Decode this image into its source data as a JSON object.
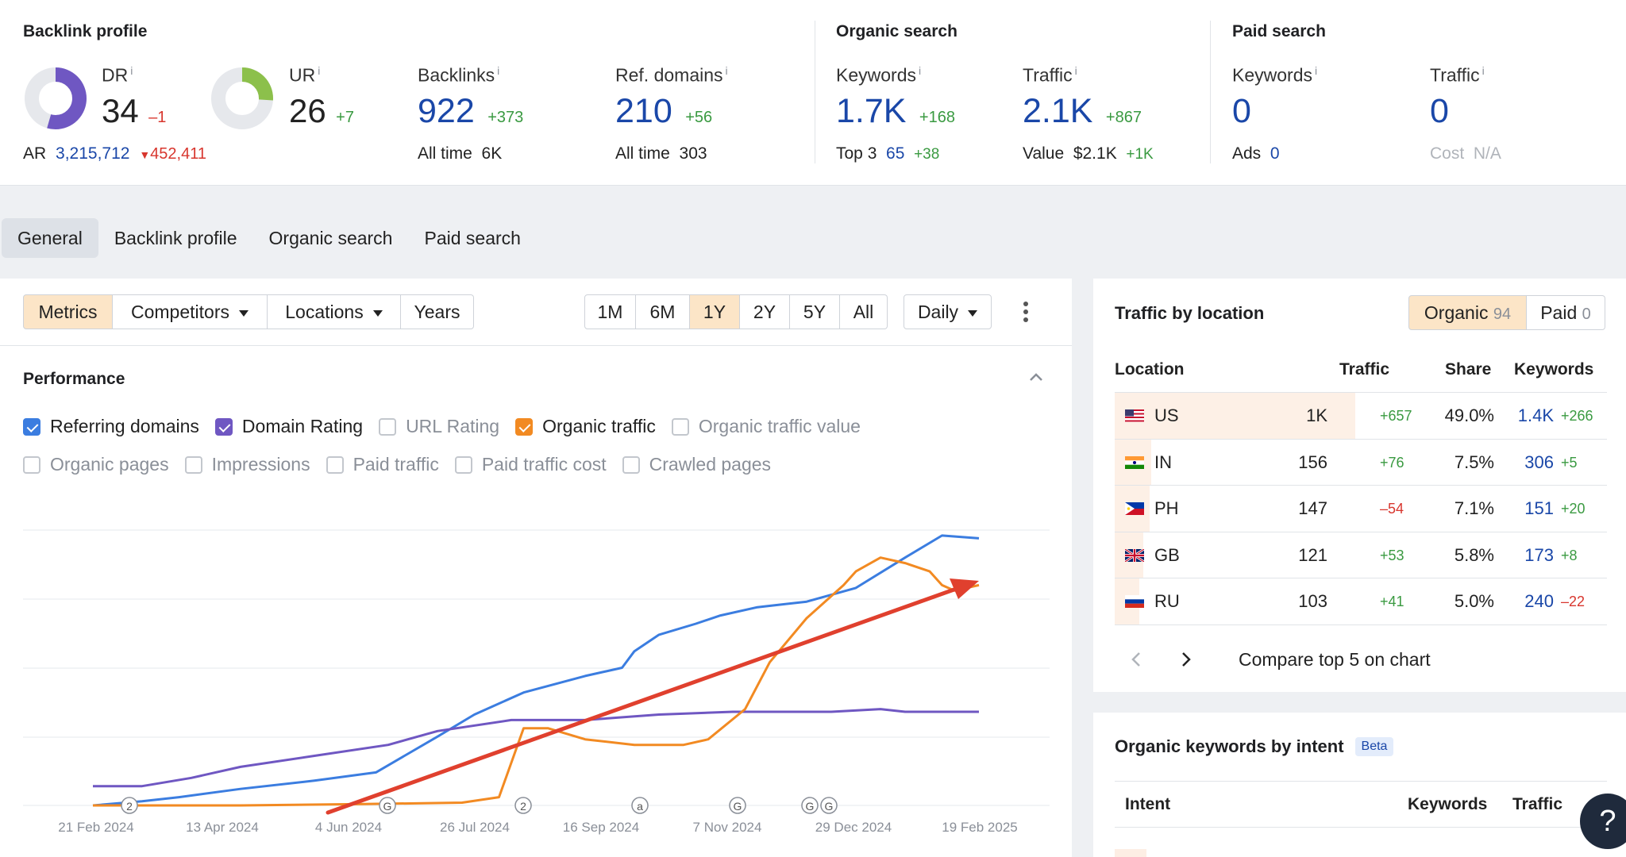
{
  "backlink_profile": {
    "title": "Backlink profile",
    "dr": {
      "label": "DR",
      "value": "34",
      "delta": "–1",
      "ratio": 0.34
    },
    "ur": {
      "label": "UR",
      "value": "26",
      "delta": "+7",
      "ratio": 0.26
    },
    "ar": {
      "label": "AR",
      "value": "3,215,712",
      "delta": "452,411"
    },
    "backlinks": {
      "label": "Backlinks",
      "value": "922",
      "delta": "+373",
      "sub_label": "All time",
      "sub_value": "6K"
    },
    "ref_domains": {
      "label": "Ref. domains",
      "value": "210",
      "delta": "+56",
      "sub_label": "All time",
      "sub_value": "303"
    }
  },
  "organic_search": {
    "title": "Organic search",
    "keywords": {
      "label": "Keywords",
      "value": "1.7K",
      "delta": "+168",
      "sub_label": "Top 3",
      "sub_value": "65",
      "sub_delta": "+38"
    },
    "traffic": {
      "label": "Traffic",
      "value": "2.1K",
      "delta": "+867",
      "sub_label": "Value",
      "sub_value": "$2.1K",
      "sub_delta": "+1K"
    }
  },
  "paid_search": {
    "title": "Paid search",
    "keywords": {
      "label": "Keywords",
      "value": "0",
      "sub_label": "Ads",
      "sub_value": "0"
    },
    "traffic": {
      "label": "Traffic",
      "value": "0",
      "sub_label": "Cost",
      "sub_value": "N/A"
    }
  },
  "tabs": [
    "General",
    "Backlink profile",
    "Organic search",
    "Paid search"
  ],
  "toolbar": {
    "views": [
      "Metrics",
      "Competitors",
      "Locations",
      "Years"
    ],
    "ranges": [
      "1M",
      "6M",
      "1Y",
      "2Y",
      "5Y",
      "All"
    ],
    "active_range": "1Y",
    "interval": "Daily"
  },
  "performance": {
    "title": "Performance",
    "checkboxes_row1": [
      {
        "label": "Referring domains",
        "checked": true
      },
      {
        "label": "Domain Rating",
        "checked": true
      },
      {
        "label": "URL Rating",
        "checked": false
      },
      {
        "label": "Organic traffic",
        "checked": true
      },
      {
        "label": "Organic traffic value",
        "checked": false
      }
    ],
    "checkboxes_row2": [
      {
        "label": "Organic pages",
        "checked": false
      },
      {
        "label": "Impressions",
        "checked": false
      },
      {
        "label": "Paid traffic",
        "checked": false
      },
      {
        "label": "Paid traffic cost",
        "checked": false
      },
      {
        "label": "Crawled pages",
        "checked": false
      }
    ]
  },
  "chart_data": {
    "type": "line",
    "x_tick_labels": [
      "21 Feb 2024",
      "13 Apr 2024",
      "4 Jun 2024",
      "26 Jul 2024",
      "16 Sep 2024",
      "7 Nov 2024",
      "29 Dec 2024",
      "19 Feb 2025"
    ],
    "y_scale": "relative (no axis labels shown)",
    "grid": true,
    "series": [
      {
        "name": "Referring domains",
        "color": "#3b7de0",
        "x": [
          0,
          20,
          35,
          60,
          90,
          115,
          140,
          155,
          175,
          200,
          215,
          220,
          230,
          245,
          255,
          270,
          290,
          310,
          330,
          345,
          360
        ],
        "y": [
          0,
          1.5,
          3,
          6,
          9,
          12,
          25,
          33,
          41,
          47,
          50,
          56,
          62,
          66,
          69,
          72,
          74,
          79,
          90,
          98,
          97
        ]
      },
      {
        "name": "Domain Rating",
        "color": "#6f57c2",
        "x": [
          0,
          20,
          40,
          60,
          90,
          120,
          140,
          170,
          200,
          230,
          260,
          300,
          320,
          330,
          360
        ],
        "y": [
          7,
          7,
          10,
          14,
          18,
          22,
          27,
          31,
          31,
          33,
          34,
          34,
          35,
          34,
          34
        ]
      },
      {
        "name": "Organic traffic",
        "color": "#f28a22",
        "x": [
          0,
          60,
          110,
          150,
          165,
          175,
          185,
          200,
          220,
          240,
          250,
          265,
          275,
          290,
          305,
          310,
          320,
          330,
          340,
          345,
          350,
          360
        ],
        "y": [
          0,
          0,
          0.5,
          1,
          3,
          28,
          28,
          24,
          22,
          22,
          24,
          35,
          52,
          68,
          80,
          85,
          90,
          88,
          85,
          80,
          78,
          80
        ]
      }
    ],
    "markers": [
      "2",
      "G",
      "2",
      "a",
      "G",
      "G",
      "G"
    ],
    "annotation": "trend arrow"
  },
  "traffic_by_location": {
    "title": "Traffic by location",
    "toggle": [
      {
        "label": "Organic",
        "count": "94"
      },
      {
        "label": "Paid",
        "count": "0"
      }
    ],
    "columns": [
      "Location",
      "Traffic",
      "Share",
      "Keywords"
    ],
    "rows": [
      {
        "code": "US",
        "traffic": "1K",
        "traffic_delta": "+657",
        "share": "49.0%",
        "share_value": 0.49,
        "keywords": "1.4K",
        "keywords_delta": "+266"
      },
      {
        "code": "IN",
        "traffic": "156",
        "traffic_delta": "+76",
        "share": "7.5%",
        "share_value": 0.075,
        "keywords": "306",
        "keywords_delta": "+5"
      },
      {
        "code": "PH",
        "traffic": "147",
        "traffic_delta": "–54",
        "share": "7.1%",
        "share_value": 0.071,
        "keywords": "151",
        "keywords_delta": "+20"
      },
      {
        "code": "GB",
        "traffic": "121",
        "traffic_delta": "+53",
        "share": "5.8%",
        "share_value": 0.058,
        "keywords": "173",
        "keywords_delta": "+8"
      },
      {
        "code": "RU",
        "traffic": "103",
        "traffic_delta": "+41",
        "share": "5.0%",
        "share_value": 0.05,
        "keywords": "240",
        "keywords_delta": "–22"
      }
    ],
    "compare_label": "Compare top 5 on chart"
  },
  "intent": {
    "title": "Organic keywords by intent",
    "badge": "Beta",
    "columns": [
      "Intent",
      "Keywords",
      "Traffic"
    ]
  },
  "help_label": "?"
}
